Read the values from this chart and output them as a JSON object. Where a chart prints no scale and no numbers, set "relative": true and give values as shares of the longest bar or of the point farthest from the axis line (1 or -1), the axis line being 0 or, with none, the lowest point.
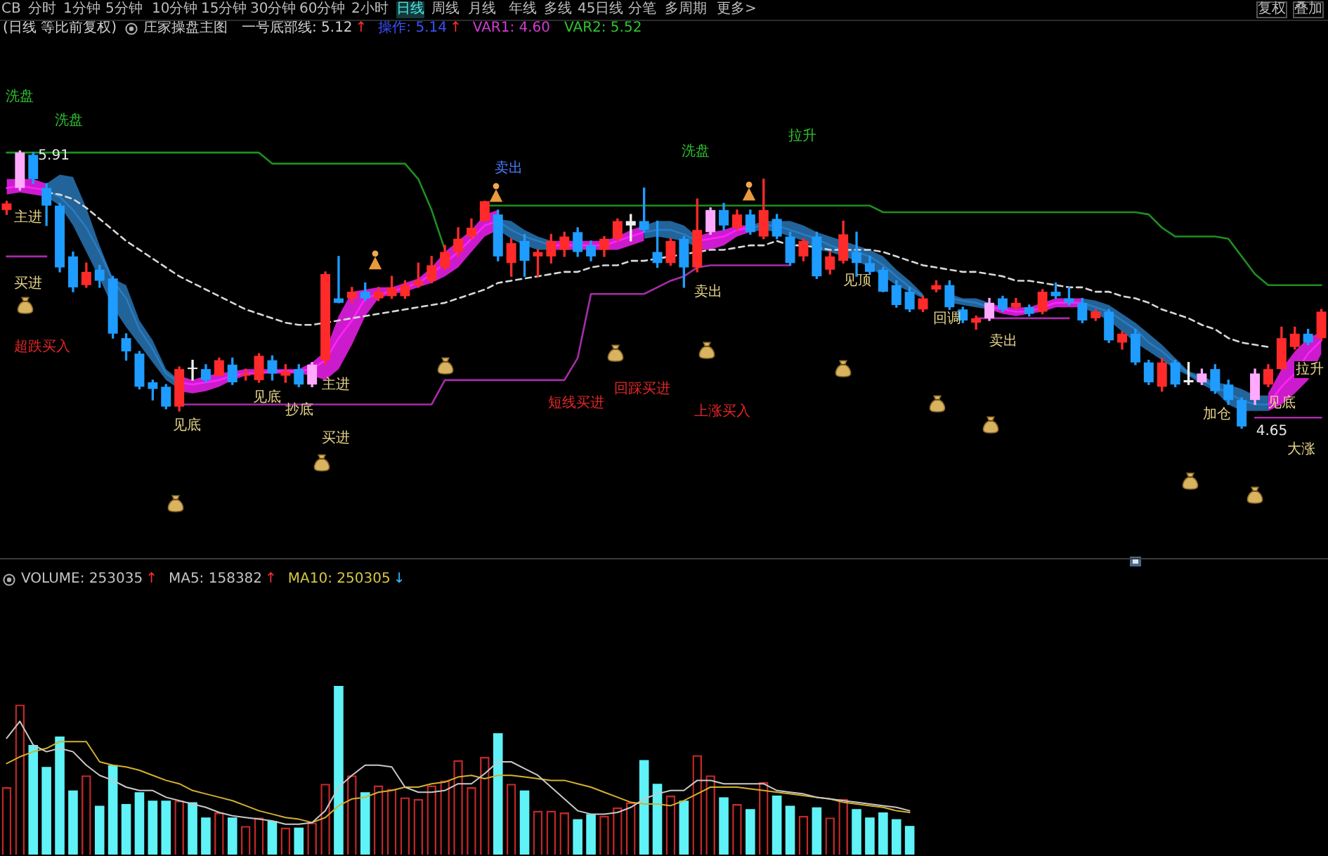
{
  "chart_data": [
    {
      "type": "other",
      "annotations": [
        "CB",
        "分时",
        "1分钟",
        "5分钟",
        "10分钟",
        "15分钟",
        "30分钟",
        "60分钟",
        "2小时",
        "日线",
        "周线",
        "月线",
        "年线",
        "多线",
        "45日线",
        "分笔",
        "多周期",
        "更多>",
        "复权",
        "叠加"
      ]
    },
    {
      "type": "candlestick",
      "title": "(日线 等比前复权)",
      "subtitle": "庄家操盘主图",
      "categories": [
        null,
        null,
        null,
        null,
        null,
        null,
        null,
        null,
        null,
        null,
        null,
        null,
        null,
        null,
        null,
        null,
        null,
        null,
        null,
        null,
        null,
        null,
        null,
        null,
        null,
        null,
        null,
        null,
        null,
        null,
        null,
        null,
        null,
        null,
        null,
        null,
        null,
        null,
        null,
        null,
        null,
        null,
        null,
        null,
        null,
        null,
        null,
        null,
        null,
        null,
        null,
        null,
        null,
        null,
        null,
        null,
        null,
        null,
        null,
        null,
        null,
        null,
        null,
        null,
        null,
        null,
        null,
        null,
        null,
        null,
        null,
        null,
        null,
        null,
        null,
        null,
        null,
        null,
        null,
        null,
        null,
        null,
        null,
        null,
        null,
        null,
        null,
        null,
        null,
        null,
        null,
        null,
        null,
        null,
        null,
        null,
        null,
        null,
        null,
        null
      ],
      "ohlc": [
        [
          5.64,
          5.68,
          5.62,
          5.67
        ],
        [
          5.74,
          5.91,
          5.73,
          5.9
        ],
        [
          5.89,
          5.9,
          5.76,
          5.78
        ],
        [
          5.74,
          5.76,
          5.57,
          5.66
        ],
        [
          5.66,
          5.67,
          5.36,
          5.38
        ],
        [
          5.43,
          5.45,
          5.27,
          5.29
        ],
        [
          5.3,
          5.4,
          5.29,
          5.36
        ],
        [
          5.37,
          5.39,
          5.29,
          5.32
        ],
        [
          5.33,
          5.34,
          5.06,
          5.08
        ],
        [
          5.06,
          5.08,
          4.96,
          5.0
        ],
        [
          4.99,
          5.0,
          4.83,
          4.84
        ],
        [
          4.86,
          4.87,
          4.78,
          4.83
        ],
        [
          4.84,
          4.85,
          4.74,
          4.75
        ],
        [
          4.75,
          4.93,
          4.73,
          4.92
        ],
        [
          4.92,
          4.96,
          4.87,
          4.92
        ],
        [
          4.92,
          4.94,
          4.86,
          4.87
        ],
        [
          4.89,
          4.97,
          4.89,
          4.96
        ],
        [
          4.94,
          4.97,
          4.85,
          4.86
        ],
        [
          4.89,
          4.92,
          4.87,
          4.9
        ],
        [
          4.87,
          4.99,
          4.86,
          4.98
        ],
        [
          4.96,
          4.98,
          4.87,
          4.9
        ],
        [
          4.89,
          4.94,
          4.86,
          4.91
        ],
        [
          4.92,
          4.94,
          4.84,
          4.85
        ],
        [
          4.85,
          4.95,
          4.84,
          4.94
        ],
        [
          4.96,
          5.36,
          4.94,
          5.35
        ],
        [
          5.24,
          5.43,
          5.22,
          5.22
        ],
        [
          5.24,
          5.29,
          5.22,
          5.27
        ],
        [
          5.27,
          5.31,
          5.23,
          5.24
        ],
        [
          5.24,
          5.29,
          5.23,
          5.27
        ],
        [
          5.25,
          5.34,
          5.24,
          5.29
        ],
        [
          5.25,
          5.32,
          5.24,
          5.3
        ],
        [
          5.3,
          5.4,
          5.29,
          5.32
        ],
        [
          5.32,
          5.43,
          5.31,
          5.39
        ],
        [
          5.38,
          5.48,
          5.37,
          5.45
        ],
        [
          5.45,
          5.56,
          5.43,
          5.51
        ],
        [
          5.52,
          5.6,
          5.51,
          5.56
        ],
        [
          5.59,
          5.68,
          5.59,
          5.68
        ],
        [
          5.62,
          5.64,
          5.41,
          5.43
        ],
        [
          5.4,
          5.51,
          5.34,
          5.49
        ],
        [
          5.5,
          5.53,
          5.34,
          5.41
        ],
        [
          5.43,
          5.46,
          5.34,
          5.45
        ],
        [
          5.43,
          5.53,
          5.4,
          5.5
        ],
        [
          5.46,
          5.54,
          5.43,
          5.52
        ],
        [
          5.54,
          5.56,
          5.43,
          5.45
        ],
        [
          5.48,
          5.5,
          5.41,
          5.43
        ],
        [
          5.46,
          5.52,
          5.43,
          5.51
        ],
        [
          5.51,
          5.6,
          5.5,
          5.59
        ],
        [
          5.57,
          5.62,
          5.5,
          5.59
        ],
        [
          5.59,
          5.74,
          5.54,
          5.55
        ],
        [
          5.45,
          5.59,
          5.38,
          5.4
        ],
        [
          5.4,
          5.51,
          5.39,
          5.5
        ],
        [
          5.51,
          5.52,
          5.29,
          5.38
        ],
        [
          5.38,
          5.69,
          5.36,
          5.55
        ],
        [
          5.54,
          5.65,
          5.53,
          5.64
        ],
        [
          5.64,
          5.67,
          5.55,
          5.57
        ],
        [
          5.56,
          5.64,
          5.55,
          5.62
        ],
        [
          5.62,
          5.64,
          5.53,
          5.54
        ],
        [
          5.52,
          5.78,
          5.51,
          5.64
        ],
        [
          5.6,
          5.62,
          5.51,
          5.52
        ],
        [
          5.52,
          5.54,
          5.39,
          5.4
        ],
        [
          5.43,
          5.51,
          5.41,
          5.5
        ],
        [
          5.52,
          5.54,
          5.33,
          5.34
        ],
        [
          5.37,
          5.45,
          5.35,
          5.43
        ],
        [
          5.41,
          5.59,
          5.4,
          5.53
        ],
        [
          5.45,
          5.54,
          5.34,
          5.4
        ],
        [
          5.4,
          5.43,
          5.35,
          5.36
        ],
        [
          5.37,
          5.38,
          5.27,
          5.27
        ],
        [
          5.3,
          5.32,
          5.2,
          5.21
        ],
        [
          5.27,
          5.29,
          5.18,
          5.19
        ],
        [
          5.19,
          5.25,
          5.18,
          5.24
        ],
        [
          5.28,
          5.32,
          5.27,
          5.3
        ],
        [
          5.3,
          5.32,
          5.19,
          5.2
        ],
        [
          5.19,
          5.2,
          5.13,
          5.14
        ],
        [
          5.13,
          5.16,
          5.1,
          5.15
        ],
        [
          5.15,
          5.24,
          5.14,
          5.22
        ],
        [
          5.24,
          5.25,
          5.18,
          5.19
        ],
        [
          5.2,
          5.24,
          5.19,
          5.22
        ],
        [
          5.2,
          5.21,
          5.16,
          5.17
        ],
        [
          5.18,
          5.28,
          5.17,
          5.27
        ],
        [
          5.27,
          5.31,
          5.24,
          5.25
        ],
        [
          5.24,
          5.29,
          5.21,
          5.22
        ],
        [
          5.22,
          5.24,
          5.13,
          5.14
        ],
        [
          5.15,
          5.19,
          5.14,
          5.18
        ],
        [
          5.18,
          5.19,
          5.04,
          5.05
        ],
        [
          5.04,
          5.09,
          5.01,
          5.08
        ],
        [
          5.08,
          5.1,
          4.94,
          4.95
        ],
        [
          4.95,
          4.96,
          4.85,
          4.86
        ],
        [
          4.84,
          4.97,
          4.82,
          4.95
        ],
        [
          4.95,
          4.96,
          4.84,
          4.85
        ],
        [
          4.86,
          4.95,
          4.85,
          4.87
        ],
        [
          4.86,
          4.92,
          4.85,
          4.9
        ],
        [
          4.92,
          4.94,
          4.81,
          4.82
        ],
        [
          4.85,
          4.87,
          4.76,
          4.78
        ],
        [
          4.78,
          4.79,
          4.65,
          4.66
        ],
        [
          4.78,
          4.92,
          4.76,
          4.9
        ],
        [
          4.85,
          4.94,
          4.84,
          4.92
        ],
        [
          4.92,
          5.11,
          4.92,
          5.06
        ],
        [
          5.02,
          5.11,
          5.01,
          5.08
        ],
        [
          5.08,
          5.1,
          5.03,
          5.04
        ],
        [
          5.06,
          5.19,
          5.05,
          5.18
        ]
      ],
      "colors": [
        "#ff2a2a",
        "#ffaaff",
        "#1e9cff",
        "#1e9cff",
        "#1e9cff",
        "#1e9cff",
        "#ff2a2a",
        "#1e9cff",
        "#1e9cff",
        "#1e9cff",
        "#1e9cff",
        "#1e9cff",
        "#1e9cff",
        "#ff2a2a",
        "#f0f0f0",
        "#1e9cff",
        "#ff2a2a",
        "#1e9cff",
        "#ff2a2a",
        "#ff2a2a",
        "#1e9cff",
        "#ff2a2a",
        "#1e9cff",
        "#ffaaff",
        "#ff2a2a",
        "#1e9cff",
        "#ff2a2a",
        "#1e9cff",
        "#ff2a2a",
        "#ff2a2a",
        "#ff2a2a",
        "#ff2a2a",
        "#ff2a2a",
        "#ff2a2a",
        "#ff2a2a",
        "#ff2a2a",
        "#ff2a2a",
        "#1e9cff",
        "#ff2a2a",
        "#1e9cff",
        "#ff2a2a",
        "#ff2a2a",
        "#ff2a2a",
        "#1e9cff",
        "#1e9cff",
        "#ff2a2a",
        "#ff2a2a",
        "#f0f0f0",
        "#1e9cff",
        "#1e9cff",
        "#ff2a2a",
        "#1e9cff",
        "#ff2a2a",
        "#ffaaff",
        "#1e9cff",
        "#ff2a2a",
        "#1e9cff",
        "#ff2a2a",
        "#1e9cff",
        "#1e9cff",
        "#ff2a2a",
        "#1e9cff",
        "#ff2a2a",
        "#ff2a2a",
        "#1e9cff",
        "#1e9cff",
        "#1e9cff",
        "#1e9cff",
        "#1e9cff",
        "#ff2a2a",
        "#ff2a2a",
        "#1e9cff",
        "#1e9cff",
        "#ff2a2a",
        "#ffaaff",
        "#1e9cff",
        "#ff2a2a",
        "#1e9cff",
        "#ff2a2a",
        "#1e9cff",
        "#1e9cff",
        "#1e9cff",
        "#ff2a2a",
        "#1e9cff",
        "#ff2a2a",
        "#1e9cff",
        "#1e9cff",
        "#ff2a2a",
        "#1e9cff",
        "#f0f0f0",
        "#ffaaff",
        "#1e9cff",
        "#1e9cff",
        "#1e9cff",
        "#ffaaff",
        "#ff2a2a",
        "#ff2a2a",
        "#ff2a2a",
        "#1e9cff",
        "#ff2a2a"
      ],
      "series": [
        {
          "type": "line",
          "color": "#2a7cc0",
          "values": [
            null,
            null,
            null,
            5.73,
            5.7,
            5.64,
            5.56,
            5.45,
            5.32,
            5.24,
            5.1,
            5.01,
            4.9,
            4.86,
            null,
            null,
            null,
            null,
            null,
            null,
            null,
            null,
            null,
            null,
            null,
            null,
            null,
            null,
            null,
            null,
            null,
            null,
            null,
            null,
            null,
            null,
            null,
            5.59,
            5.55,
            5.52,
            5.5,
            5.48,
            null,
            null,
            null,
            null,
            null,
            null,
            5.54,
            5.55,
            5.55,
            5.53,
            5.5,
            null,
            null,
            null,
            5.56,
            5.57,
            5.57,
            5.55,
            5.53,
            5.51,
            5.48,
            5.46,
            5.45,
            5.43,
            5.39,
            5.34,
            5.29,
            5.25,
            null,
            5.24,
            5.23,
            5.22,
            5.2,
            null,
            null,
            null,
            null,
            null,
            null,
            5.22,
            5.2,
            5.18,
            5.14,
            5.1,
            5.04,
            5.0,
            4.95,
            4.9,
            4.87,
            4.84,
            4.81,
            4.78,
            4.76,
            4.76,
            null,
            null,
            null,
            null
          ],
          "upper": [
            null,
            null,
            null,
            5.76,
            5.8,
            5.79,
            5.65,
            5.48,
            5.33,
            5.3,
            5.14,
            5.05,
            4.92,
            4.87,
            null,
            null,
            null,
            null,
            null,
            null,
            null,
            null,
            null,
            null,
            null,
            null,
            null,
            null,
            null,
            null,
            null,
            null,
            null,
            null,
            null,
            null,
            null,
            5.6,
            5.59,
            5.55,
            5.52,
            5.5,
            null,
            null,
            null,
            null,
            null,
            null,
            5.57,
            5.59,
            5.59,
            5.57,
            5.52,
            null,
            null,
            null,
            5.57,
            5.59,
            5.59,
            5.59,
            5.57,
            5.54,
            5.52,
            5.5,
            5.48,
            5.46,
            5.43,
            5.37,
            5.32,
            5.26,
            null,
            5.26,
            5.24,
            5.24,
            5.22,
            null,
            null,
            null,
            null,
            null,
            null,
            5.24,
            5.23,
            5.21,
            5.17,
            5.13,
            5.08,
            5.03,
            4.97,
            4.91,
            4.89,
            4.86,
            4.85,
            4.83,
            4.8,
            4.8,
            null,
            null,
            null,
            null
          ],
          "lower": [
            null,
            null,
            null,
            5.7,
            5.66,
            5.57,
            5.45,
            5.33,
            5.2,
            5.11,
            5.03,
            4.95,
            4.87,
            4.83,
            null,
            null,
            null,
            null,
            null,
            null,
            null,
            null,
            null,
            null,
            null,
            null,
            null,
            null,
            null,
            null,
            null,
            null,
            null,
            null,
            null,
            null,
            null,
            5.55,
            5.51,
            5.48,
            5.46,
            5.46,
            null,
            null,
            null,
            null,
            null,
            null,
            5.51,
            5.52,
            5.51,
            5.5,
            5.47,
            null,
            null,
            null,
            5.54,
            5.55,
            5.54,
            5.52,
            5.5,
            5.46,
            5.45,
            5.43,
            5.41,
            5.38,
            5.34,
            5.3,
            5.27,
            5.24,
            null,
            5.22,
            5.21,
            5.2,
            5.19,
            null,
            null,
            null,
            null,
            null,
            null,
            5.2,
            5.17,
            5.14,
            5.09,
            5.04,
            5.0,
            4.96,
            4.92,
            4.89,
            4.85,
            4.82,
            4.76,
            4.73,
            4.73,
            4.73,
            null,
            null,
            null,
            null
          ]
        },
        {
          "type": "line",
          "color": "#ff22ff",
          "values": [
            5.74,
            5.75,
            5.74,
            5.73,
            null,
            null,
            null,
            null,
            null,
            null,
            null,
            null,
            null,
            4.86,
            4.85,
            4.86,
            4.87,
            4.89,
            4.9,
            4.9,
            4.91,
            4.91,
            4.91,
            4.92,
            4.96,
            5.06,
            5.14,
            5.24,
            5.26,
            5.27,
            5.29,
            5.31,
            5.35,
            5.4,
            5.45,
            5.51,
            5.57,
            5.59,
            null,
            null,
            null,
            5.48,
            5.48,
            5.48,
            5.48,
            5.48,
            5.5,
            5.52,
            5.54,
            null,
            null,
            null,
            5.5,
            5.51,
            5.52,
            5.55,
            5.56,
            null,
            null,
            null,
            null,
            null,
            null,
            null,
            null,
            null,
            null,
            null,
            null,
            null,
            null,
            null,
            null,
            null,
            5.2,
            5.19,
            5.18,
            5.18,
            5.2,
            5.22,
            5.22,
            5.22,
            null,
            null,
            null,
            null,
            null,
            null,
            null,
            null,
            null,
            null,
            null,
            null,
            null,
            4.76,
            4.84,
            4.9,
            4.99,
            5.05
          ],
          "upper": [
            5.78,
            5.78,
            5.78,
            5.76,
            null,
            null,
            null,
            null,
            null,
            null,
            null,
            null,
            null,
            4.89,
            4.87,
            4.89,
            4.9,
            4.91,
            4.92,
            4.92,
            4.92,
            4.92,
            4.92,
            4.95,
            5.0,
            5.16,
            5.27,
            5.28,
            5.29,
            5.29,
            5.31,
            5.33,
            5.38,
            5.45,
            5.5,
            5.55,
            5.62,
            5.64,
            null,
            null,
            null,
            5.5,
            5.5,
            5.5,
            5.5,
            5.5,
            5.52,
            5.55,
            5.57,
            null,
            null,
            null,
            5.52,
            5.54,
            5.55,
            5.57,
            5.57,
            null,
            null,
            null,
            null,
            null,
            null,
            null,
            null,
            null,
            null,
            null,
            null,
            null,
            null,
            null,
            null,
            null,
            5.22,
            5.2,
            5.2,
            5.2,
            5.22,
            5.24,
            5.24,
            5.24,
            null,
            null,
            null,
            null,
            null,
            null,
            null,
            null,
            null,
            null,
            null,
            null,
            null,
            4.81,
            4.92,
            5.0,
            5.06,
            5.09
          ],
          "lower": [
            5.71,
            5.72,
            5.71,
            5.7,
            null,
            null,
            null,
            null,
            null,
            null,
            null,
            null,
            null,
            4.82,
            4.81,
            4.82,
            4.84,
            4.87,
            4.89,
            4.9,
            4.9,
            4.9,
            4.9,
            4.89,
            4.87,
            4.92,
            5.03,
            5.16,
            5.24,
            5.26,
            5.27,
            5.29,
            5.31,
            5.34,
            5.38,
            5.45,
            5.52,
            5.55,
            null,
            null,
            null,
            5.46,
            5.46,
            5.46,
            5.46,
            5.46,
            5.46,
            5.48,
            5.5,
            null,
            null,
            null,
            5.46,
            5.46,
            5.48,
            5.52,
            5.54,
            null,
            null,
            null,
            null,
            null,
            null,
            null,
            null,
            null,
            null,
            null,
            null,
            null,
            null,
            null,
            null,
            null,
            5.19,
            5.17,
            5.16,
            5.17,
            5.18,
            5.2,
            5.2,
            5.2,
            null,
            null,
            null,
            null,
            null,
            null,
            null,
            null,
            null,
            null,
            null,
            null,
            null,
            4.73,
            4.76,
            4.81,
            4.87,
            4.99
          ]
        },
        {
          "type": "line",
          "color": "#d8d8d8",
          "line_style": "dashed",
          "values": [
            null,
            null,
            null,
            5.72,
            5.71,
            5.69,
            5.65,
            5.6,
            5.55,
            5.5,
            5.46,
            5.42,
            5.38,
            5.34,
            5.31,
            5.28,
            5.25,
            5.22,
            5.19,
            5.17,
            5.15,
            5.13,
            5.12,
            5.12,
            5.13,
            5.14,
            5.15,
            5.16,
            5.17,
            5.18,
            5.19,
            5.2,
            5.21,
            5.22,
            5.24,
            5.26,
            5.28,
            5.31,
            5.32,
            5.33,
            5.34,
            5.35,
            5.36,
            5.36,
            5.38,
            5.39,
            5.39,
            5.41,
            5.41,
            5.42,
            5.43,
            5.44,
            5.45,
            5.46,
            5.46,
            5.47,
            5.48,
            5.48,
            5.5,
            5.48,
            5.48,
            5.47,
            5.46,
            5.46,
            5.46,
            5.46,
            5.45,
            5.43,
            5.41,
            5.39,
            5.38,
            5.37,
            5.36,
            5.36,
            5.35,
            5.34,
            5.32,
            5.32,
            5.31,
            5.3,
            5.29,
            5.29,
            5.27,
            5.27,
            5.25,
            5.24,
            5.22,
            5.19,
            5.17,
            5.15,
            5.12,
            5.1,
            5.06,
            5.04,
            5.03,
            5.02,
            null,
            null,
            null,
            null
          ]
        },
        {
          "type": "line",
          "color": "#1f8f1f",
          "values": [
            5.9,
            5.9,
            5.9,
            5.9,
            5.9,
            5.9,
            5.9,
            5.9,
            5.9,
            5.9,
            5.9,
            5.9,
            5.9,
            5.9,
            5.9,
            5.9,
            5.9,
            5.9,
            5.9,
            5.9,
            5.85,
            5.85,
            5.85,
            5.85,
            5.85,
            5.85,
            5.85,
            5.85,
            5.85,
            5.85,
            5.85,
            5.78,
            5.64,
            5.46,
            null,
            null,
            5.66,
            5.66,
            5.66,
            5.66,
            5.66,
            5.66,
            5.66,
            5.66,
            5.66,
            5.66,
            5.66,
            5.66,
            5.66,
            5.66,
            5.66,
            5.66,
            5.66,
            5.66,
            5.66,
            5.66,
            5.66,
            5.66,
            5.66,
            5.66,
            5.66,
            5.66,
            5.66,
            5.66,
            5.66,
            5.66,
            5.63,
            5.63,
            5.63,
            5.63,
            5.63,
            5.63,
            5.63,
            5.63,
            5.63,
            5.63,
            5.63,
            5.63,
            5.63,
            5.63,
            5.63,
            5.63,
            5.63,
            5.63,
            5.63,
            5.63,
            5.62,
            5.56,
            5.52,
            5.52,
            5.52,
            5.52,
            5.51,
            5.43,
            5.35,
            5.3,
            5.3,
            5.3,
            5.3,
            5.3
          ]
        },
        {
          "type": "line",
          "color": "#a82ca8",
          "values": [
            5.43,
            5.43,
            5.43,
            5.43,
            null,
            null,
            null,
            null,
            null,
            null,
            null,
            null,
            null,
            4.76,
            4.76,
            4.76,
            4.76,
            4.76,
            4.76,
            4.76,
            4.76,
            4.76,
            4.76,
            4.76,
            4.76,
            4.76,
            4.76,
            4.76,
            4.76,
            4.76,
            4.76,
            4.76,
            4.76,
            4.87,
            4.87,
            4.87,
            4.87,
            4.87,
            4.87,
            4.87,
            4.87,
            4.87,
            4.87,
            4.97,
            5.26,
            5.26,
            5.26,
            5.26,
            5.26,
            5.29,
            5.32,
            5.34,
            5.38,
            5.39,
            5.39,
            5.39,
            5.39,
            5.39,
            5.39,
            5.39,
            null,
            null,
            null,
            null,
            null,
            null,
            null,
            null,
            null,
            null,
            null,
            null,
            null,
            5.15,
            5.15,
            5.15,
            5.15,
            5.15,
            5.15,
            5.15,
            5.15,
            null,
            null,
            null,
            null,
            null,
            null,
            null,
            null,
            null,
            null,
            null,
            null,
            null,
            4.7,
            4.7,
            4.7,
            4.7,
            4.7,
            4.7
          ]
        }
      ],
      "annotations": [
        "一号底部线: 5.12",
        "↑",
        "操作: 5.14",
        "↑",
        "VAR1: 4.60",
        "VAR2: 5.52",
        "洗盘",
        "洗盘",
        {
          "text": "5.91",
          "y": 5.91
        },
        "主进",
        "买进",
        "超跌买入",
        "见底",
        "见底",
        "抄底",
        "主进",
        "买进",
        "卖出",
        "短线买进",
        "回踩买进",
        "洗盘",
        "拉升",
        "卖出",
        "上涨买入",
        "见顶",
        "回调",
        "卖出",
        "加仓",
        "见底",
        "4.65",
        "大涨",
        "拉升"
      ]
    },
    {
      "type": "bar",
      "relative": true,
      "categories": [
        null,
        null,
        null,
        null,
        null,
        null,
        null,
        null,
        null,
        null,
        null,
        null,
        null,
        null,
        null,
        null,
        null,
        null,
        null,
        null,
        null,
        null,
        null,
        null,
        null,
        null,
        null,
        null,
        null,
        null,
        null,
        null,
        null,
        null,
        null,
        null,
        null,
        null,
        null,
        null,
        null,
        null,
        null,
        null,
        null,
        null,
        null,
        null,
        null,
        null,
        null,
        null,
        null,
        null,
        null,
        null,
        null,
        null,
        null,
        null,
        null,
        null,
        null,
        null,
        null,
        null,
        null,
        null,
        null,
        null,
        null,
        null,
        null,
        null,
        null,
        null,
        null,
        null,
        null,
        null,
        null,
        null,
        null,
        null,
        null,
        null,
        null,
        null,
        null,
        null,
        null,
        null,
        null,
        null,
        null,
        null,
        null,
        null,
        null,
        null
      ],
      "series": [
        {
          "type": "bar",
          "values": [
            0.4,
            0.89,
            0.65,
            0.52,
            0.7,
            0.38,
            0.47,
            0.29,
            0.53,
            0.3,
            0.37,
            0.32,
            0.32,
            0.32,
            0.31,
            0.22,
            0.25,
            0.22,
            0.17,
            0.22,
            0.2,
            0.16,
            0.16,
            0.19,
            0.42,
            1,
            0.47,
            0.37,
            0.41,
            0.39,
            0.34,
            0.33,
            0.41,
            0.44,
            0.56,
            0.4,
            0.58,
            0.72,
            0.42,
            0.38,
            0.26,
            0.26,
            0.25,
            0.21,
            0.24,
            0.23,
            0.28,
            0.31,
            0.56,
            0.42,
            0.35,
            0.32,
            0.59,
            0.47,
            0.34,
            0.3,
            0.27,
            0.43,
            0.35,
            0.29,
            0.23,
            0.28,
            0.22,
            0.33,
            0.27,
            0.22,
            0.25,
            0.21,
            0.17,
            null,
            null,
            null,
            null,
            null,
            null,
            null,
            null,
            null,
            null,
            null,
            null,
            null,
            null,
            null,
            null,
            null,
            null,
            null,
            null,
            null,
            null,
            null,
            null,
            null,
            null,
            null,
            null,
            null,
            null,
            null
          ],
          "colors": [
            "#c02828",
            "#c02828",
            "#5ff2f7",
            "#5ff2f7",
            "#5ff2f7",
            "#5ff2f7",
            "#c02828",
            "#5ff2f7",
            "#5ff2f7",
            "#5ff2f7",
            "#5ff2f7",
            "#5ff2f7",
            "#5ff2f7",
            "#c02828",
            "#5ff2f7",
            "#5ff2f7",
            "#c02828",
            "#5ff2f7",
            "#c02828",
            "#c02828",
            "#5ff2f7",
            "#c02828",
            "#5ff2f7",
            "#c02828",
            "#c02828",
            "#5ff2f7",
            "#c02828",
            "#5ff2f7",
            "#c02828",
            "#c02828",
            "#c02828",
            "#c02828",
            "#c02828",
            "#c02828",
            "#c02828",
            "#c02828",
            "#c02828",
            "#5ff2f7",
            "#c02828",
            "#5ff2f7",
            "#c02828",
            "#c02828",
            "#c02828",
            "#5ff2f7",
            "#5ff2f7",
            "#c02828",
            "#c02828",
            "#c02828",
            "#5ff2f7",
            "#5ff2f7",
            "#c02828",
            "#5ff2f7",
            "#c02828",
            "#c02828",
            "#5ff2f7",
            "#c02828",
            "#5ff2f7",
            "#c02828",
            "#5ff2f7",
            "#5ff2f7",
            "#c02828",
            "#5ff2f7",
            "#c02828",
            "#c02828",
            "#5ff2f7",
            "#5ff2f7",
            "#5ff2f7",
            "#5ff2f7",
            "#5ff2f7",
            null,
            null,
            null,
            null,
            null,
            null,
            null,
            null,
            null,
            null,
            null,
            null,
            null,
            null,
            null,
            null,
            null,
            null,
            null,
            null,
            null,
            null,
            null,
            null,
            null,
            null,
            null,
            null,
            null,
            null,
            null
          ]
        },
        {
          "type": "line",
          "color": "#c8c8c8",
          "values": [
            0.69,
            0.79,
            0.65,
            0.61,
            0.63,
            0.61,
            0.53,
            0.47,
            0.44,
            0.4,
            0.38,
            0.38,
            0.34,
            0.32,
            0.3,
            0.28,
            0.25,
            0.23,
            0.22,
            0.21,
            0.2,
            0.18,
            0.18,
            0.19,
            0.26,
            0.4,
            0.47,
            0.53,
            0.53,
            0.52,
            0.4,
            0.37,
            0.37,
            0.38,
            0.42,
            0.42,
            0.48,
            0.55,
            0.55,
            0.51,
            0.47,
            0.4,
            0.33,
            0.26,
            0.24,
            0.24,
            0.25,
            0.28,
            0.33,
            0.36,
            0.38,
            0.38,
            0.44,
            0.44,
            0.42,
            0.42,
            0.42,
            0.42,
            0.38,
            0.37,
            0.36,
            0.34,
            0.33,
            0.32,
            0.31,
            0.3,
            0.29,
            0.28,
            0.26,
            null,
            null,
            null,
            null,
            null,
            null,
            null,
            null,
            null,
            null,
            null,
            null,
            null,
            null,
            null,
            null,
            null,
            null,
            null,
            null,
            null,
            null,
            null,
            null,
            null,
            null,
            null,
            null,
            null,
            null,
            null
          ]
        },
        {
          "type": "line",
          "color": "#d4b030",
          "values": [
            0.54,
            0.58,
            0.61,
            0.63,
            0.67,
            0.67,
            0.67,
            0.55,
            0.53,
            0.52,
            0.5,
            0.47,
            0.44,
            0.42,
            0.38,
            0.36,
            0.34,
            0.32,
            0.29,
            0.26,
            0.24,
            0.22,
            0.21,
            0.19,
            0.22,
            0.29,
            0.33,
            0.34,
            0.37,
            0.38,
            0.4,
            0.4,
            0.42,
            0.43,
            0.46,
            0.47,
            0.45,
            0.47,
            0.47,
            0.46,
            0.45,
            0.44,
            0.44,
            0.42,
            0.4,
            0.37,
            0.34,
            0.31,
            0.3,
            0.3,
            0.29,
            0.32,
            0.36,
            0.4,
            0.4,
            0.4,
            0.39,
            0.38,
            0.37,
            0.36,
            0.35,
            0.34,
            0.33,
            0.31,
            0.3,
            0.29,
            0.28,
            0.26,
            0.25,
            null,
            null,
            null,
            null,
            null,
            null,
            null,
            null,
            null,
            null,
            null,
            null,
            null,
            null,
            null,
            null,
            null,
            null,
            null,
            null,
            null,
            null,
            null,
            null,
            null,
            null,
            null,
            null,
            null,
            null,
            null
          ]
        }
      ],
      "annotations": [
        "VOLUME: 253035",
        "↑",
        "MA5: 158382",
        "↑",
        "MA10: 250305",
        "↓"
      ]
    }
  ]
}
